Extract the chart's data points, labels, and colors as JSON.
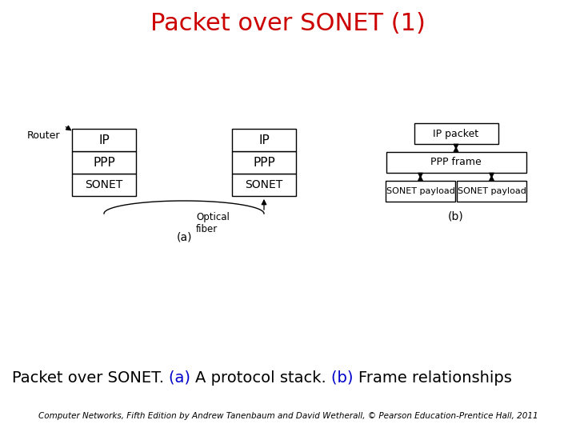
{
  "title": "Packet over SONET (1)",
  "title_color": "#cc0000",
  "title_fontsize": 22,
  "bg_color": "#ffffff",
  "caption_parts": [
    {
      "text": "Packet over SONET. ",
      "color": "#000000"
    },
    {
      "text": "(a) ",
      "color": "#0000cc"
    },
    {
      "text": "A protocol stack. ",
      "color": "#000000"
    },
    {
      "text": "(b) ",
      "color": "#0000cc"
    },
    {
      "text": "Frame relationships",
      "color": "#000000"
    }
  ],
  "caption_fontsize": 14,
  "footer": "Computer Networks, Fifth Edition by Andrew Tanenbaum and David Wetherall, © Pearson Education-Prentice Hall, 2011",
  "footer_fontsize": 7.5,
  "label_a": "(a)",
  "label_b": "(b)"
}
